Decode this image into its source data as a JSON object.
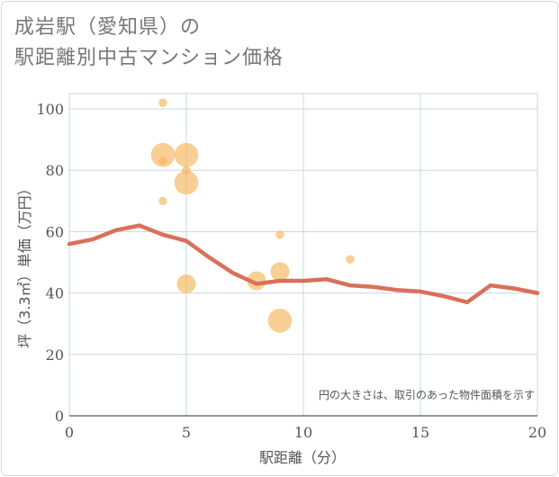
{
  "title_line1": "成岩駅（愛知県）の",
  "title_line2": "駅距離別中古マンション価格",
  "chart_data": {
    "type": "scatter+line",
    "xlabel": "駅距離（分）",
    "ylabel": "坪（3.3㎡）単価（万円）",
    "xlim": [
      0,
      20
    ],
    "ylim": [
      0,
      105
    ],
    "x_ticks": [
      "0",
      "5",
      "10",
      "15",
      "20"
    ],
    "y_ticks": [
      "0",
      "20",
      "40",
      "60",
      "80",
      "100"
    ],
    "note": "円の大きさは、取引のあった物件面積を示す",
    "colors": {
      "bubble": "#f4b55a",
      "line": "#d9705a",
      "grid": "#c9d6e6"
    },
    "bubbles": [
      {
        "x": 4,
        "y": 102,
        "size": 1
      },
      {
        "x": 4,
        "y": 85,
        "size": 4
      },
      {
        "x": 4,
        "y": 83,
        "size": 1
      },
      {
        "x": 4,
        "y": 70,
        "size": 1
      },
      {
        "x": 5,
        "y": 85,
        "size": 4
      },
      {
        "x": 5,
        "y": 80,
        "size": 1
      },
      {
        "x": 5,
        "y": 76,
        "size": 4
      },
      {
        "x": 5,
        "y": 43,
        "size": 2.5
      },
      {
        "x": 8,
        "y": 44,
        "size": 2.5
      },
      {
        "x": 9,
        "y": 59,
        "size": 1
      },
      {
        "x": 9,
        "y": 47,
        "size": 2.5
      },
      {
        "x": 9,
        "y": 31,
        "size": 4
      },
      {
        "x": 12,
        "y": 51,
        "size": 1
      }
    ],
    "line": {
      "x": [
        0,
        1,
        2,
        3,
        4,
        5,
        6,
        7,
        8,
        9,
        10,
        11,
        12,
        13,
        14,
        15,
        16,
        17,
        18,
        19,
        20
      ],
      "y": [
        56,
        57.5,
        60.5,
        62,
        59,
        57,
        51.5,
        46.5,
        43,
        44,
        44,
        44.5,
        42.5,
        42,
        41,
        40.5,
        39,
        37,
        42.5,
        41.5,
        40
      ]
    }
  }
}
